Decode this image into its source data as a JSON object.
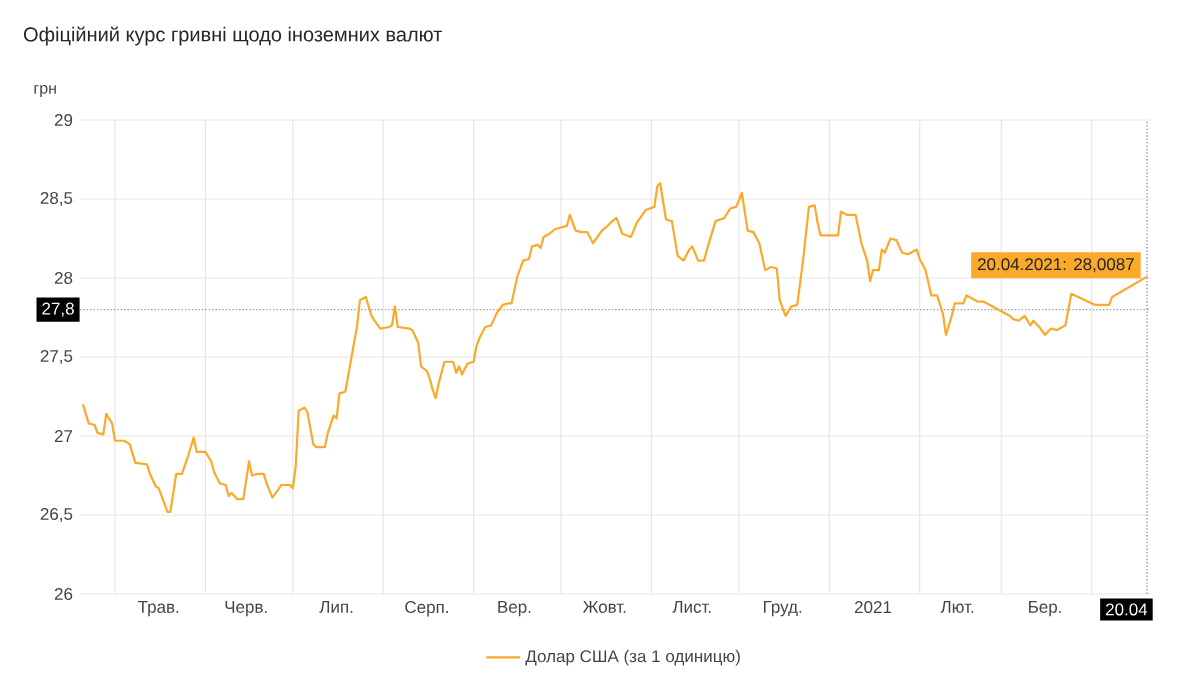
{
  "chart_data": {
    "type": "line",
    "title": "Офіційний курс гривні щодо іноземних валют",
    "ylabel": "грн",
    "xlim": [
      "2020-04-19",
      "2021-04-21"
    ],
    "ylim": [
      26,
      29
    ],
    "xticks": [
      {
        "value": "2020-05-01",
        "label": null
      },
      {
        "value": "2020-06-01",
        "label": null
      },
      {
        "value": "2020-07-01",
        "label": null
      },
      {
        "value": "2020-08-01",
        "label": null
      },
      {
        "value": "2020-09-01",
        "label": null
      },
      {
        "value": "2020-10-01",
        "label": null
      },
      {
        "value": "2020-11-01",
        "label": null
      },
      {
        "value": "2020-12-01",
        "label": null
      },
      {
        "value": "2021-01-01",
        "label": null
      },
      {
        "value": "2021-02-01",
        "label": null
      },
      {
        "value": "2021-03-01",
        "label": null
      },
      {
        "value": "2021-04-01",
        "label": null
      },
      {
        "value": "2020-05-16",
        "label": "Трав."
      },
      {
        "value": "2020-06-15",
        "label": "Черв."
      },
      {
        "value": "2020-07-16",
        "label": "Лип."
      },
      {
        "value": "2020-08-16",
        "label": "Серп."
      },
      {
        "value": "2020-09-15",
        "label": "Вер."
      },
      {
        "value": "2020-10-16",
        "label": "Жовт."
      },
      {
        "value": "2020-11-15",
        "label": "Лист."
      },
      {
        "value": "2020-12-16",
        "label": "Груд."
      },
      {
        "value": "2021-01-16",
        "label": "2021"
      },
      {
        "value": "2021-02-14",
        "label": "Лют."
      },
      {
        "value": "2021-03-16",
        "label": "Бер."
      },
      {
        "value": "2021-04-20",
        "label": "20.04"
      }
    ],
    "yticks": [
      26,
      {
        "value": 26.5,
        "label": "26,5"
      },
      27,
      {
        "value": 27.5,
        "label": "27,5"
      },
      28,
      {
        "value": 28.5,
        "label": "28,5"
      },
      29
    ],
    "grid": true,
    "legend": "bottom",
    "series": [
      {
        "name": "Долар США (за 1 одиницю)",
        "color": "#fba92a",
        "x": [
          "2020-04-20",
          "2020-04-22",
          "2020-04-24",
          "2020-04-25",
          "2020-04-27",
          "2020-04-28",
          "2020-04-30",
          "2020-05-01",
          "2020-05-04",
          "2020-05-06",
          "2020-05-08",
          "2020-05-12",
          "2020-05-13",
          "2020-05-15",
          "2020-05-16",
          "2020-05-17",
          "2020-05-19",
          "2020-05-20",
          "2020-05-22",
          "2020-05-24",
          "2020-05-26",
          "2020-05-28",
          "2020-05-29",
          "2020-06-01",
          "2020-06-03",
          "2020-06-04",
          "2020-06-06",
          "2020-06-08",
          "2020-06-09",
          "2020-06-10",
          "2020-06-12",
          "2020-06-14",
          "2020-06-16",
          "2020-06-17",
          "2020-06-19",
          "2020-06-21",
          "2020-06-22",
          "2020-06-24",
          "2020-06-26",
          "2020-06-27",
          "2020-06-30",
          "2020-07-01",
          "2020-07-02",
          "2020-07-03",
          "2020-07-05",
          "2020-07-06",
          "2020-07-08",
          "2020-07-09",
          "2020-07-12",
          "2020-07-13",
          "2020-07-15",
          "2020-07-16",
          "2020-07-17",
          "2020-07-19",
          "2020-07-22",
          "2020-07-23",
          "2020-07-24",
          "2020-07-26",
          "2020-07-28",
          "2020-07-29",
          "2020-07-31",
          "2020-08-03",
          "2020-08-04",
          "2020-08-05",
          "2020-08-06",
          "2020-08-10",
          "2020-08-11",
          "2020-08-13",
          "2020-08-14",
          "2020-08-16",
          "2020-08-17",
          "2020-08-18",
          "2020-08-19",
          "2020-08-20",
          "2020-08-22",
          "2020-08-25",
          "2020-08-26",
          "2020-08-27",
          "2020-08-28",
          "2020-08-30",
          "2020-09-01",
          "2020-09-02",
          "2020-09-03",
          "2020-09-05",
          "2020-09-07",
          "2020-09-09",
          "2020-09-11",
          "2020-09-13",
          "2020-09-14",
          "2020-09-16",
          "2020-09-18",
          "2020-09-20",
          "2020-09-21",
          "2020-09-23",
          "2020-09-24",
          "2020-09-25",
          "2020-09-27",
          "2020-09-29",
          "2020-10-01",
          "2020-10-03",
          "2020-10-04",
          "2020-10-06",
          "2020-10-08",
          "2020-10-10",
          "2020-10-12",
          "2020-10-15",
          "2020-10-17",
          "2020-10-18",
          "2020-10-20",
          "2020-10-22",
          "2020-10-25",
          "2020-10-27",
          "2020-10-30",
          "2020-11-02",
          "2020-11-03",
          "2020-11-04",
          "2020-11-06",
          "2020-11-08",
          "2020-11-10",
          "2020-11-12",
          "2020-11-14",
          "2020-11-15",
          "2020-11-17",
          "2020-11-19",
          "2020-11-21",
          "2020-11-23",
          "2020-11-26",
          "2020-11-28",
          "2020-11-30",
          "2020-12-01",
          "2020-12-02",
          "2020-12-04",
          "2020-12-06",
          "2020-12-08",
          "2020-12-10",
          "2020-12-12",
          "2020-12-14",
          "2020-12-15",
          "2020-12-17",
          "2020-12-19",
          "2020-12-21",
          "2020-12-23",
          "2020-12-25",
          "2020-12-27",
          "2020-12-28",
          "2020-12-29",
          "2021-01-01",
          "2021-01-04",
          "2021-01-05",
          "2021-01-07",
          "2021-01-10",
          "2021-01-12",
          "2021-01-14",
          "2021-01-15",
          "2021-01-16",
          "2021-01-18",
          "2021-01-19",
          "2021-01-20",
          "2021-01-22",
          "2021-01-24",
          "2021-01-26",
          "2021-01-28",
          "2021-01-31",
          "2021-02-01",
          "2021-02-03",
          "2021-02-05",
          "2021-02-07",
          "2021-02-09",
          "2021-02-10",
          "2021-02-12",
          "2021-02-13",
          "2021-02-16",
          "2021-02-17",
          "2021-02-21",
          "2021-02-23",
          "2021-03-04",
          "2021-03-05",
          "2021-03-07",
          "2021-03-09",
          "2021-03-11",
          "2021-03-12",
          "2021-03-14",
          "2021-03-16",
          "2021-03-18",
          "2021-03-20",
          "2021-03-21",
          "2021-03-23",
          "2021-03-25",
          "2021-04-02",
          "2021-04-04",
          "2021-04-07",
          "2021-04-08",
          "2021-04-20"
        ],
        "values": [
          27.2,
          27.08,
          27.07,
          27.02,
          27.01,
          27.14,
          27.08,
          26.97,
          26.97,
          26.95,
          26.83,
          26.82,
          26.76,
          26.68,
          26.67,
          26.62,
          26.52,
          26.52,
          26.76,
          26.76,
          26.87,
          26.99,
          26.9,
          26.9,
          26.84,
          26.77,
          26.7,
          26.69,
          26.62,
          26.64,
          26.6,
          26.6,
          26.84,
          26.75,
          26.76,
          26.76,
          26.7,
          26.61,
          26.66,
          26.69,
          26.69,
          26.67,
          26.81,
          27.16,
          27.18,
          27.15,
          26.95,
          26.93,
          26.93,
          27.02,
          27.13,
          27.11,
          27.27,
          27.28,
          27.59,
          27.69,
          27.86,
          27.88,
          27.76,
          27.73,
          27.68,
          27.69,
          27.7,
          27.82,
          27.69,
          27.68,
          27.67,
          27.59,
          27.44,
          27.41,
          27.36,
          27.29,
          27.24,
          27.33,
          27.47,
          27.47,
          27.4,
          27.44,
          27.39,
          27.46,
          27.47,
          27.57,
          27.62,
          27.69,
          27.7,
          27.78,
          27.83,
          27.84,
          27.84,
          28.01,
          28.11,
          28.12,
          28.2,
          28.21,
          28.19,
          28.26,
          28.28,
          28.31,
          28.32,
          28.33,
          28.4,
          28.3,
          28.29,
          28.29,
          28.22,
          28.3,
          28.33,
          28.35,
          28.38,
          28.28,
          28.26,
          28.35,
          28.43,
          28.45,
          28.58,
          28.6,
          28.37,
          28.36,
          28.14,
          28.11,
          28.18,
          28.2,
          28.11,
          28.11,
          28.24,
          28.36,
          28.38,
          28.44,
          28.45,
          28.49,
          28.54,
          28.3,
          28.29,
          28.22,
          28.05,
          28.07,
          28.06,
          27.86,
          27.76,
          27.82,
          27.83,
          28.11,
          28.45,
          28.46,
          28.35,
          28.27,
          28.27,
          28.27,
          28.42,
          28.4,
          28.4,
          28.22,
          28.11,
          27.98,
          28.05,
          28.05,
          28.18,
          28.16,
          28.25,
          28.24,
          28.16,
          28.15,
          28.18,
          28.12,
          28.05,
          27.89,
          27.89,
          27.77,
          27.64,
          27.76,
          27.84,
          27.84,
          27.89,
          27.85,
          27.85,
          27.76,
          27.74,
          27.73,
          27.76,
          27.7,
          27.73,
          27.69,
          27.64,
          27.68,
          27.67,
          27.68,
          27.7,
          27.9,
          27.83,
          27.83,
          27.83,
          27.88,
          28.0087
        ]
      }
    ],
    "ref_lines": [
      {
        "axis": "y",
        "value": 27.8,
        "label": "27,8",
        "color": "#999999",
        "line_style": "dotted"
      },
      {
        "axis": "x",
        "value": "2021-04-20",
        "color": "#999999",
        "line_style": "dotted"
      }
    ],
    "annotations": [
      {
        "text": "20.04.2021: 28,0087",
        "x": "2021-04-20",
        "y": 28.0087
      }
    ]
  }
}
